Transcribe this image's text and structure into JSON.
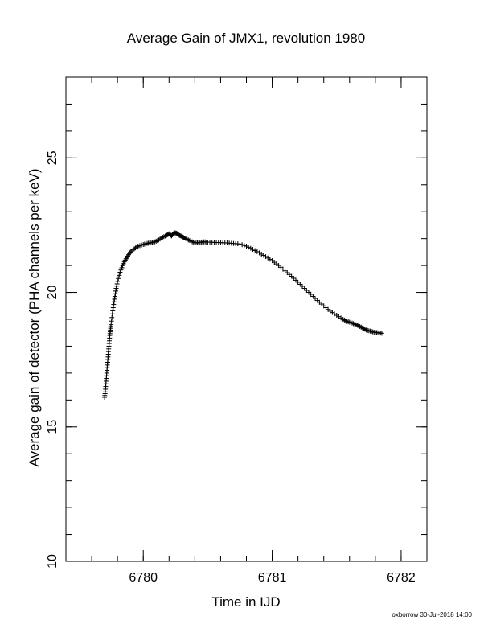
{
  "chart_data": {
    "type": "scatter",
    "title": "Average Gain of JMX1, revolution 1980",
    "xlabel": "Time in IJD",
    "ylabel": "Average gain of detector (PHA channels per keV)",
    "xlim": [
      6779.4,
      6782.2
    ],
    "ylim": [
      10,
      28
    ],
    "x_ticks": [
      6780,
      6781,
      6782
    ],
    "y_ticks": [
      10,
      15,
      20,
      25
    ],
    "x_minor_step": 0.2,
    "y_minor_step": 1,
    "marker": "plus",
    "grid": false,
    "legend": "none",
    "series": [
      {
        "x": [
          6779.7,
          6779.705,
          6779.71,
          6779.715,
          6779.72,
          6779.725,
          6779.73,
          6779.735,
          6779.74,
          6779.745,
          6779.75,
          6779.76,
          6779.77,
          6779.78,
          6779.79,
          6779.8,
          6779.82,
          6779.84,
          6779.86,
          6779.88,
          6779.9,
          6779.93,
          6779.96,
          6780.0,
          6780.03,
          6780.06,
          6780.09,
          6780.12,
          6780.15,
          6780.18,
          6780.2,
          6780.22,
          6780.24,
          6780.26,
          6780.28,
          6780.3,
          6780.32,
          6780.35,
          6780.38,
          6780.41,
          6780.44,
          6780.47,
          6780.5,
          6780.55,
          6780.6,
          6780.65,
          6780.7,
          6780.75,
          6780.8,
          6780.85,
          6780.9,
          6780.95,
          6781.0,
          6781.05,
          6781.1,
          6781.15,
          6781.2,
          6781.25,
          6781.3,
          6781.35,
          6781.4,
          6781.45,
          6781.5,
          6781.55,
          6781.58,
          6781.61,
          6781.64,
          6781.67,
          6781.7,
          6781.73,
          6781.76,
          6781.79,
          6781.82,
          6781.85
        ],
        "y": [
          16.1,
          16.3,
          16.6,
          16.9,
          17.2,
          17.5,
          17.8,
          18.1,
          18.4,
          18.6,
          18.8,
          19.2,
          19.55,
          19.85,
          20.15,
          20.4,
          20.75,
          21.0,
          21.2,
          21.35,
          21.5,
          21.62,
          21.72,
          21.78,
          21.82,
          21.85,
          21.88,
          21.95,
          22.05,
          22.12,
          22.18,
          22.1,
          22.22,
          22.2,
          22.12,
          22.08,
          22.02,
          21.95,
          21.88,
          21.84,
          21.86,
          21.88,
          21.87,
          21.86,
          21.85,
          21.84,
          21.82,
          21.8,
          21.72,
          21.6,
          21.47,
          21.33,
          21.18,
          21.0,
          20.8,
          20.6,
          20.38,
          20.15,
          19.93,
          19.7,
          19.5,
          19.3,
          19.15,
          19.0,
          18.92,
          18.88,
          18.82,
          18.76,
          18.68,
          18.6,
          18.56,
          18.52,
          18.5,
          18.48
        ]
      }
    ]
  },
  "footer": "oxborrow 30-Jul-2018 14:00"
}
